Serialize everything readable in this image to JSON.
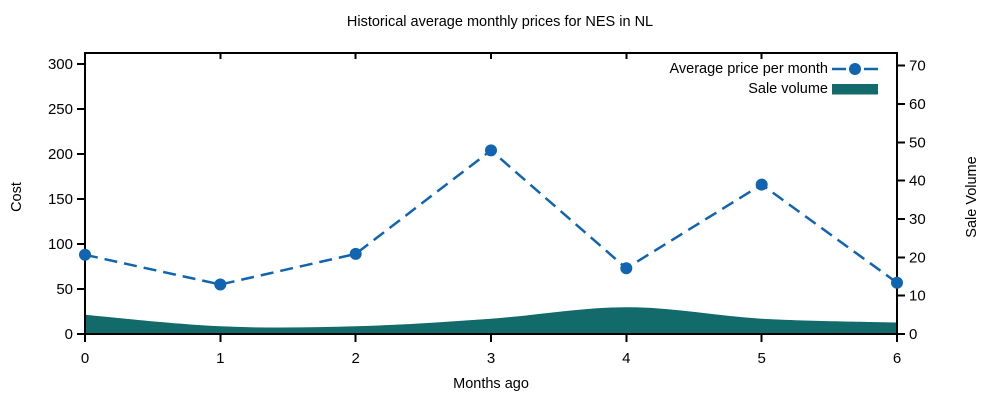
{
  "chart": {
    "background": "#ffffff",
    "axis_color": "#000000",
    "text_color": "#000000"
  },
  "chart_data": {
    "type": "line",
    "title": "Historical average monthly prices for NES in NL",
    "x": [
      0,
      1,
      2,
      3,
      4,
      5,
      6
    ],
    "series": [
      {
        "name": "Average price per month",
        "type": "line",
        "style": "dashed-with-circle-markers",
        "axis": "left",
        "color": "#1164af",
        "values": [
          88,
          55,
          89,
          204,
          73,
          166,
          57
        ]
      },
      {
        "name": "Sale volume",
        "type": "area",
        "style": "smooth-filled",
        "axis": "right",
        "color": "#136a6b",
        "values": [
          5,
          2,
          2,
          4,
          7,
          4,
          3
        ]
      }
    ],
    "axes": {
      "x": {
        "label": "Months ago",
        "ticks": [
          0,
          1,
          2,
          3,
          4,
          5,
          6
        ]
      },
      "left": {
        "label": "Cost",
        "min": 0,
        "max": 300,
        "ticks": [
          0,
          50,
          100,
          150,
          200,
          250,
          300
        ]
      },
      "right": {
        "label": "Sale Volume",
        "min": 0,
        "max": 70,
        "ticks": [
          0,
          10,
          20,
          30,
          40,
          50,
          60,
          70
        ]
      }
    },
    "legend_position": "top-right-inside",
    "grid": false
  }
}
